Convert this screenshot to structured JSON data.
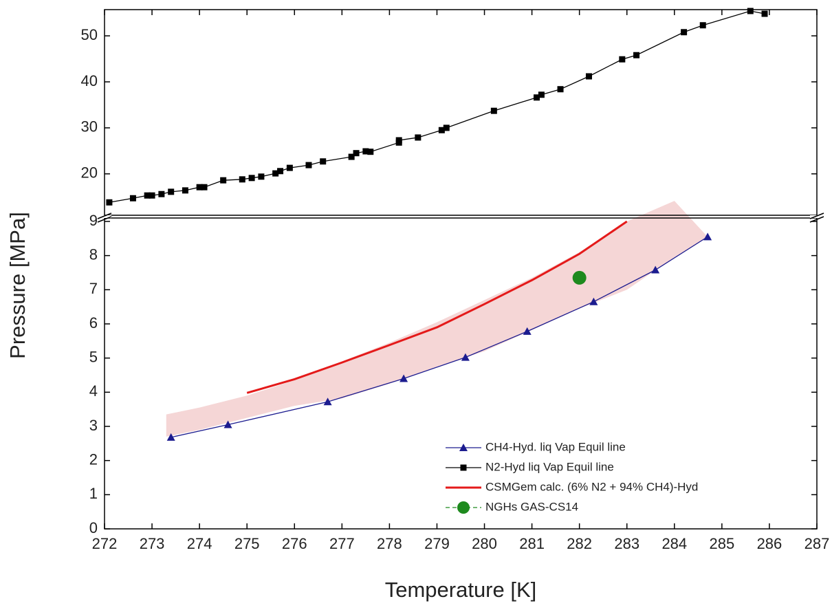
{
  "chart_data": {
    "type": "line",
    "xlabel": "Temperature [K]",
    "ylabel": "Pressure [MPa]",
    "xlim": [
      272,
      287
    ],
    "xticks": [
      272,
      273,
      274,
      275,
      276,
      277,
      278,
      279,
      280,
      281,
      282,
      283,
      284,
      285,
      286,
      287
    ],
    "broken_y_axis": true,
    "panels": [
      {
        "ylim": [
          0,
          9.1
        ],
        "yticks": [
          0,
          1,
          2,
          3,
          4,
          5,
          6,
          7,
          8,
          9
        ]
      },
      {
        "ylim": [
          11,
          55.7
        ],
        "yticks": [
          20,
          30,
          40,
          50
        ]
      }
    ],
    "shaded_region": {
      "color": "#f5d6d6",
      "panel": 0,
      "x": [
        273.3,
        274,
        275,
        276,
        277,
        278,
        279,
        280,
        281,
        282,
        283,
        284,
        284.7
      ],
      "lower": [
        2.7,
        2.9,
        3.25,
        3.6,
        3.82,
        4.25,
        4.75,
        5.2,
        5.82,
        6.45,
        7.0,
        7.95,
        8.55
      ],
      "upper": [
        3.35,
        3.55,
        3.9,
        4.35,
        4.9,
        5.45,
        6.05,
        6.7,
        7.35,
        8.1,
        9.0,
        9.6,
        8.55
      ]
    },
    "series": [
      {
        "name": "CH4-Hyd. liq Vap Equil line",
        "color": "#1c1c8f",
        "marker": "triangle",
        "panel": 0,
        "x": [
          273.4,
          274.6,
          276.7,
          278.3,
          279.6,
          280.9,
          282.3,
          283.6,
          284.7
        ],
        "values": [
          2.68,
          3.05,
          3.72,
          4.4,
          5.02,
          5.78,
          6.65,
          7.58,
          8.55
        ]
      },
      {
        "name": "N2-Hyd liq Vap Equil line",
        "color": "#000000",
        "marker": "square",
        "panel": 1,
        "x": [
          272.1,
          272.6,
          272.9,
          273.0,
          273.2,
          273.4,
          273.7,
          274.0,
          274.1,
          274.5,
          274.9,
          275.1,
          275.3,
          275.6,
          275.7,
          275.9,
          276.3,
          276.6,
          277.2,
          277.3,
          277.5,
          277.6,
          278.2,
          278.2,
          278.6,
          279.1,
          279.2,
          280.2,
          281.1,
          281.2,
          281.6,
          282.2,
          282.9,
          283.2,
          284.2,
          284.6,
          285.6,
          285.9
        ],
        "values": [
          13.8,
          14.7,
          15.3,
          15.3,
          15.6,
          16.1,
          16.4,
          17.1,
          17.1,
          18.6,
          18.8,
          19.1,
          19.4,
          20.1,
          20.6,
          21.3,
          21.9,
          22.7,
          23.7,
          24.5,
          24.9,
          24.8,
          26.8,
          27.3,
          27.9,
          29.5,
          30.0,
          33.7,
          36.6,
          37.2,
          38.4,
          41.2,
          44.9,
          45.8,
          50.8,
          52.3,
          55.4,
          54.8
        ]
      },
      {
        "name": "CSMGem calc. (6% N2 + 94% CH4)-Hyd",
        "color": "#e41a1a",
        "marker": "none",
        "panel": 0,
        "x": [
          275,
          276,
          277,
          278,
          279,
          280,
          281,
          282,
          283
        ],
        "values": [
          3.98,
          4.38,
          4.87,
          5.38,
          5.9,
          6.58,
          7.28,
          8.05,
          9.0
        ]
      },
      {
        "name": "NGHs GAS-CS14",
        "color": "#1e8a1e",
        "marker": "circle",
        "panel": 0,
        "x": [
          282
        ],
        "values": [
          7.35
        ]
      }
    ]
  }
}
